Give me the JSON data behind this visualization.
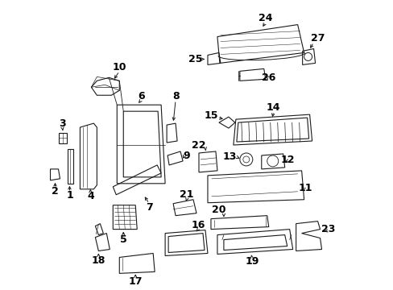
{
  "bg_color": "#ffffff",
  "fig_width": 4.89,
  "fig_height": 3.6,
  "dpi": 100,
  "lc": "#1a1a1a",
  "lw": 0.8
}
